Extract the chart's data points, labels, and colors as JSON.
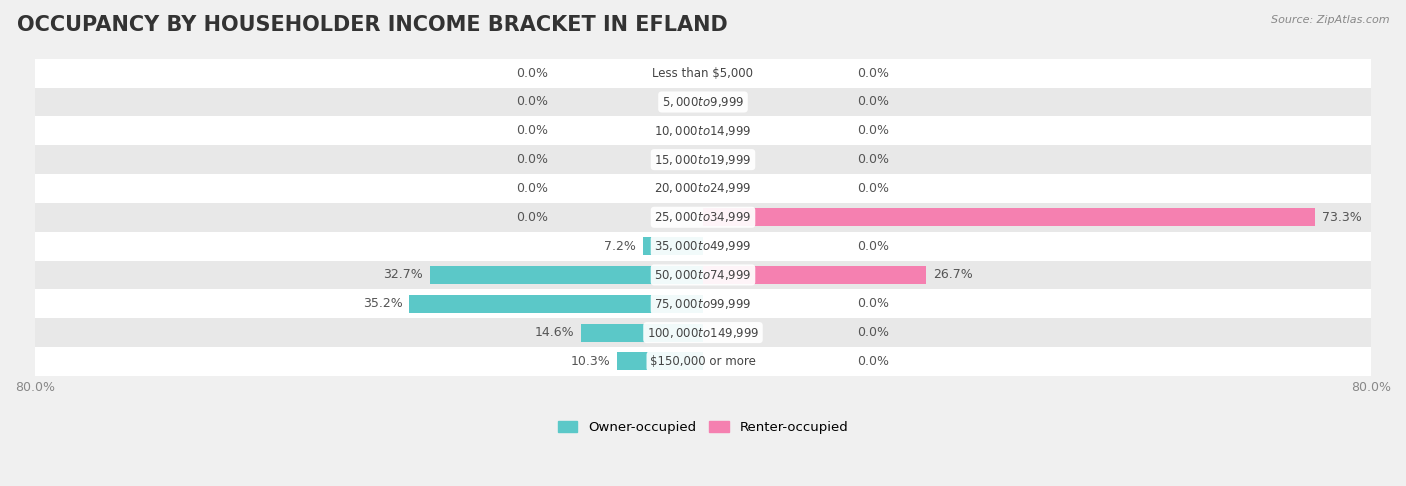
{
  "title": "OCCUPANCY BY HOUSEHOLDER INCOME BRACKET IN EFLAND",
  "source": "Source: ZipAtlas.com",
  "categories": [
    "Less than $5,000",
    "$5,000 to $9,999",
    "$10,000 to $14,999",
    "$15,000 to $19,999",
    "$20,000 to $24,999",
    "$25,000 to $34,999",
    "$35,000 to $49,999",
    "$50,000 to $74,999",
    "$75,000 to $99,999",
    "$100,000 to $149,999",
    "$150,000 or more"
  ],
  "owner_values": [
    0.0,
    0.0,
    0.0,
    0.0,
    0.0,
    0.0,
    7.2,
    32.7,
    35.2,
    14.6,
    10.3
  ],
  "renter_values": [
    0.0,
    0.0,
    0.0,
    0.0,
    0.0,
    73.3,
    0.0,
    26.7,
    0.0,
    0.0,
    0.0
  ],
  "owner_color": "#5bc8c8",
  "renter_color": "#f580b0",
  "owner_label": "Owner-occupied",
  "renter_label": "Renter-occupied",
  "xlim": 80.0,
  "bar_height": 0.62,
  "title_fontsize": 15,
  "label_fontsize": 9,
  "tick_fontsize": 9,
  "category_fontsize": 8.5,
  "legend_fontsize": 9.5
}
